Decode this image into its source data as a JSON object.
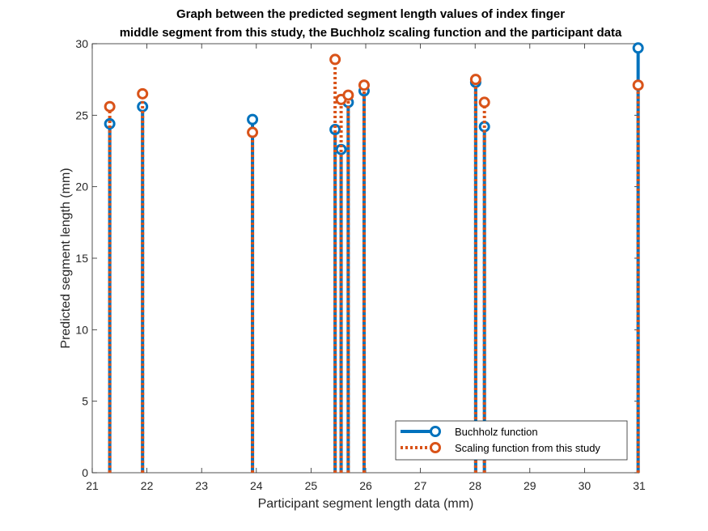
{
  "chart_data": {
    "type": "stem",
    "title": [
      "Graph between the predicted segment length values of index finger",
      "middle segment from this study, the Buchholz scaling function and the participant data"
    ],
    "xlabel": "Participant segment length data (mm)",
    "ylabel": "Predicted segment length (mm)",
    "xlim": [
      21,
      31
    ],
    "ylim": [
      0,
      30
    ],
    "xticks": [
      21,
      22,
      23,
      24,
      25,
      26,
      27,
      28,
      29,
      30,
      31
    ],
    "yticks": [
      0,
      5,
      10,
      15,
      20,
      25,
      30
    ],
    "grid": false,
    "legend_position": "bottom-right",
    "series": [
      {
        "name": "Buchholz function",
        "color": "#0072BD",
        "line": "solid",
        "x": [
          21.32,
          21.92,
          23.93,
          25.44,
          25.55,
          25.68,
          25.97,
          28.01,
          28.17,
          30.98
        ],
        "y": [
          24.4,
          25.6,
          24.7,
          24.0,
          22.6,
          25.9,
          26.7,
          27.3,
          24.2,
          29.7
        ]
      },
      {
        "name": "Scaling function from this study",
        "color": "#D95319",
        "line": "dotted",
        "x": [
          21.32,
          21.92,
          23.93,
          25.44,
          25.55,
          25.68,
          25.97,
          28.01,
          28.17,
          30.98
        ],
        "y": [
          25.6,
          26.5,
          23.8,
          28.9,
          26.1,
          26.4,
          27.1,
          27.5,
          25.9,
          27.1
        ]
      }
    ]
  }
}
